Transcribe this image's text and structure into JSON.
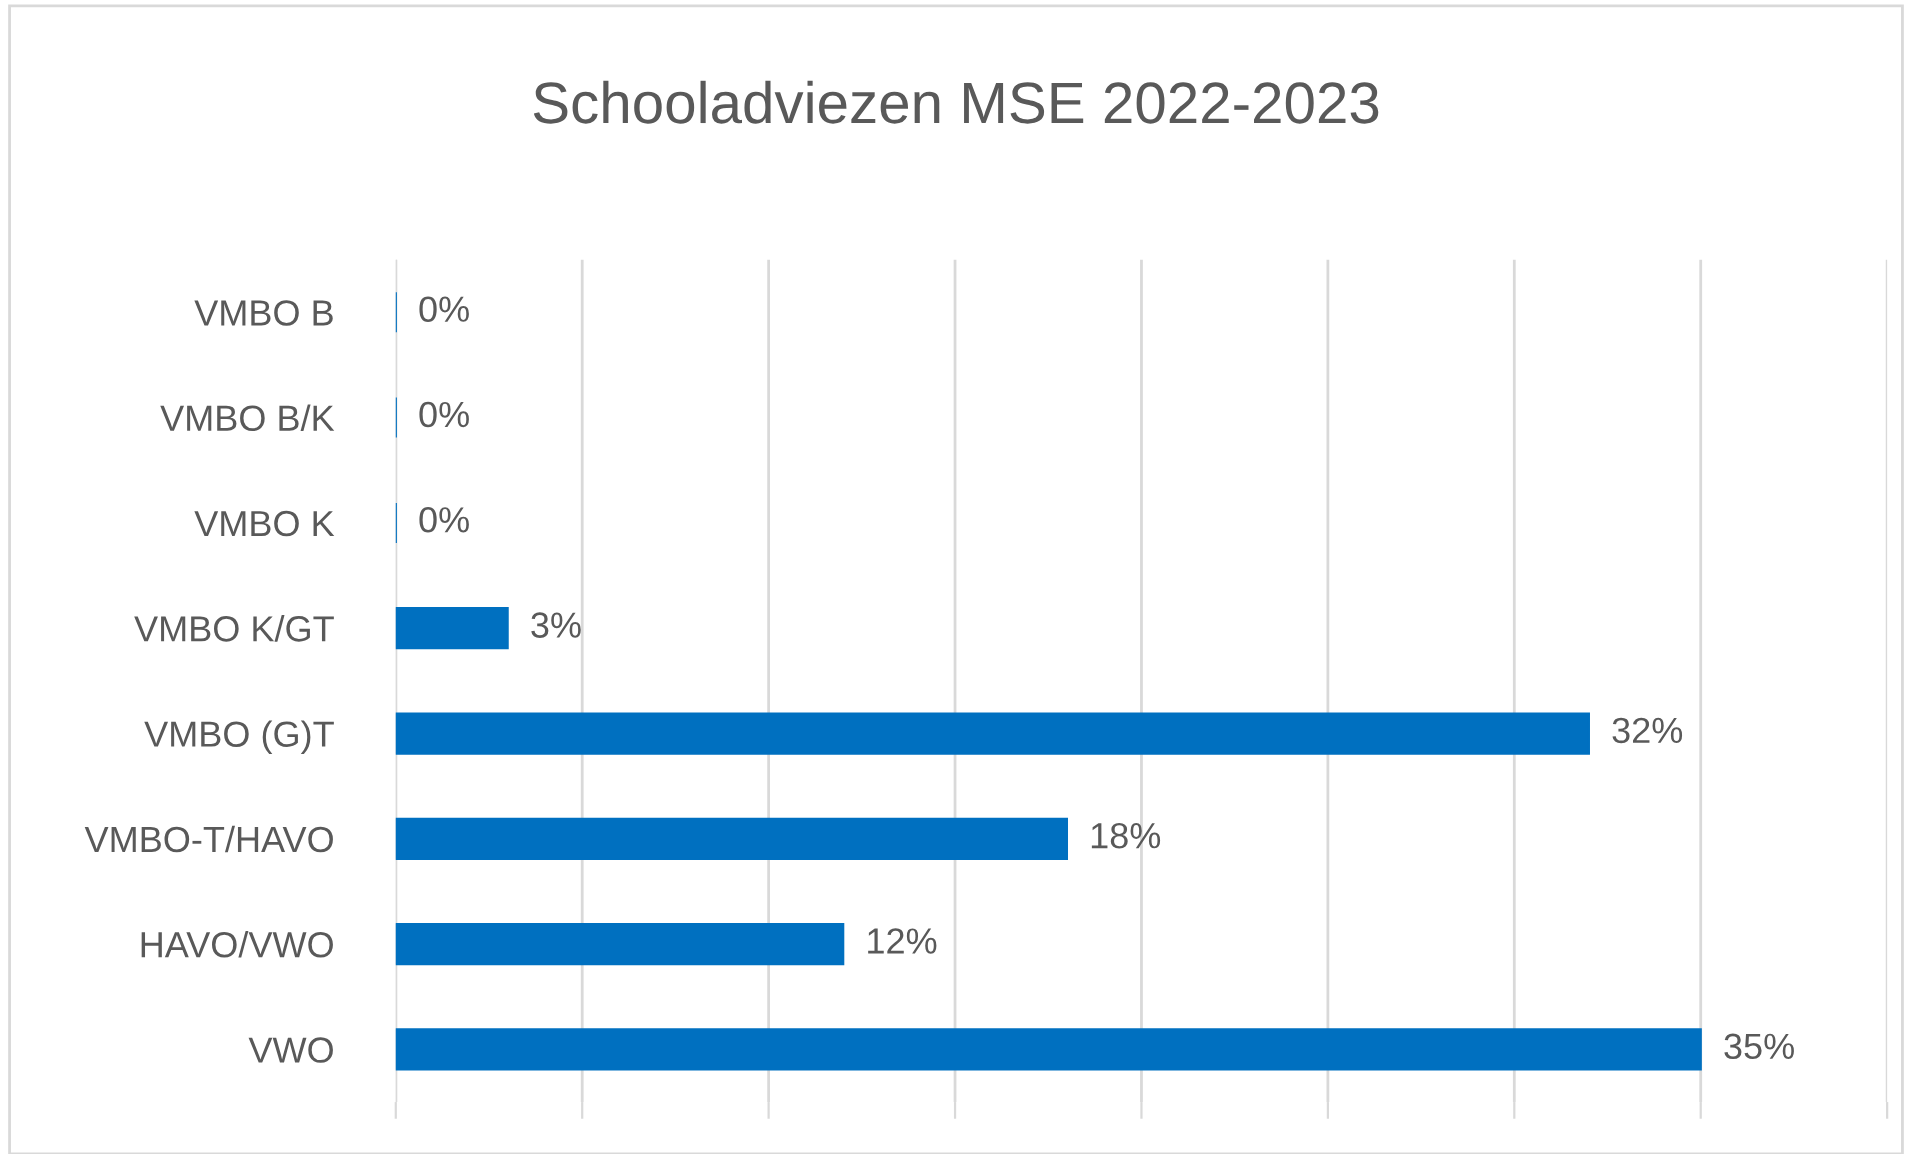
{
  "chart_data": {
    "type": "bar",
    "orientation": "horizontal",
    "title": "Schooladviezen MSE 2022-2023",
    "categories": [
      "VMBO B",
      "VMBO B/K",
      "VMBO K",
      "VMBO K/GT",
      "VMBO (G)T",
      "VMBO-T/HAVO",
      "HAVO/VWO",
      "VWO"
    ],
    "values": [
      0,
      0,
      0,
      3,
      32,
      18,
      12,
      35
    ],
    "value_labels": [
      "0%",
      "0%",
      "0%",
      "3%",
      "32%",
      "18%",
      "12%",
      "35%"
    ],
    "color": "#0070c0",
    "xlim": [
      0,
      40
    ],
    "xticks": [
      {
        "value": 0,
        "label": null
      },
      {
        "value": 5,
        "label": null
      },
      {
        "value": 10,
        "label": null
      },
      {
        "value": 15,
        "label": null
      },
      {
        "value": 20,
        "label": null
      },
      {
        "value": 25,
        "label": null
      },
      {
        "value": 30,
        "label": null
      },
      {
        "value": 35,
        "label": null
      },
      {
        "value": 40,
        "label": null
      }
    ],
    "grid": "x",
    "tick_labels": "y"
  }
}
